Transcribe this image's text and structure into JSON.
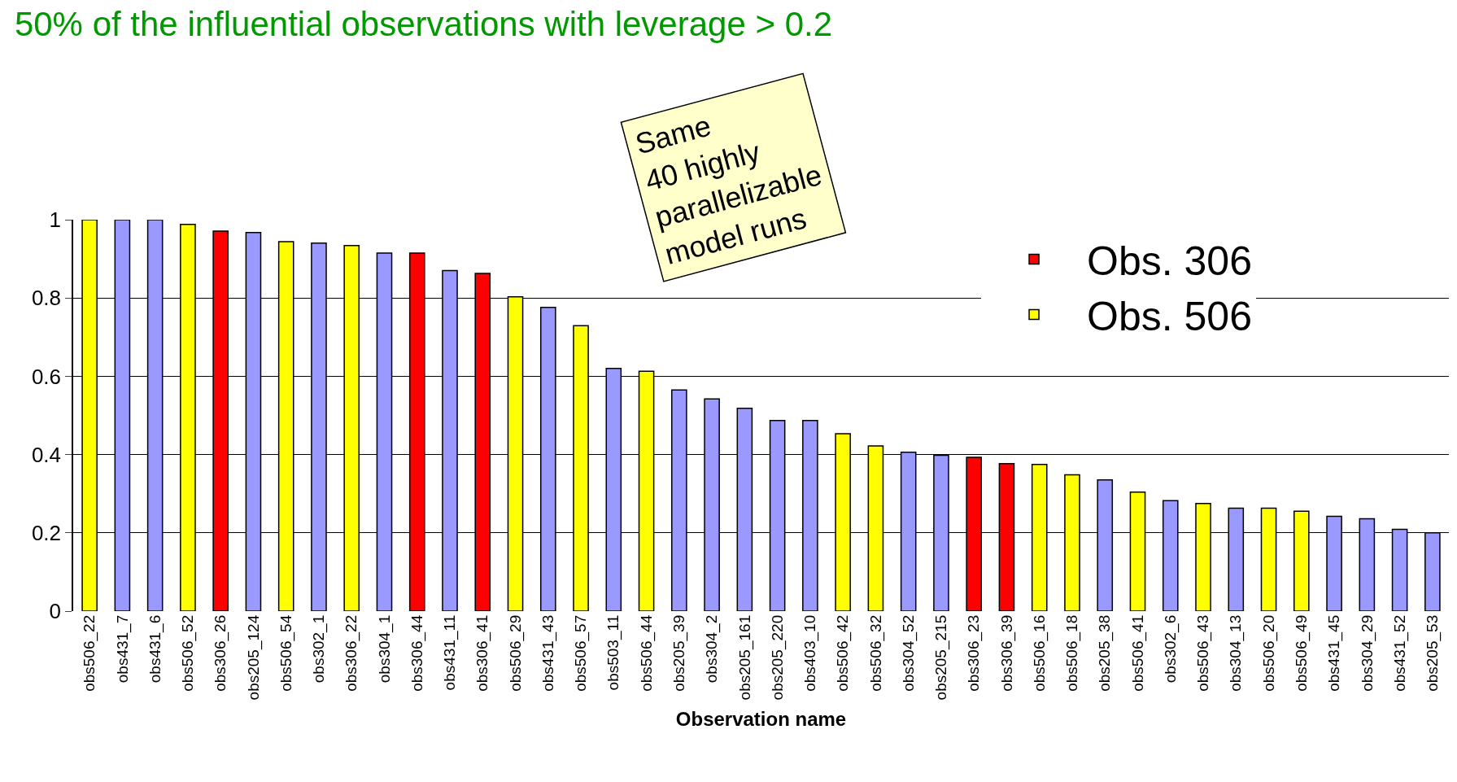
{
  "chart_data": {
    "type": "bar",
    "title": "50% of the influential observations with leverage > 0.2",
    "xlabel": "Observation name",
    "categories": [
      "obs506_22",
      "obs431_7",
      "obs431_6",
      "obs506_52",
      "obs306_26",
      "obs205_124",
      "obs506_54",
      "obs302_1",
      "obs306_22",
      "obs304_1",
      "obs306_44",
      "obs431_11",
      "obs306_41",
      "obs506_29",
      "obs431_43",
      "obs506_57",
      "obs503_11",
      "obs506_44",
      "obs205_39",
      "obs304_2",
      "obs205_161",
      "obs205_220",
      "obs403_10",
      "obs506_42",
      "obs506_32",
      "obs304_52",
      "obs205_215",
      "obs306_23",
      "obs306_39",
      "obs506_16",
      "obs506_18",
      "obs205_38",
      "obs506_41",
      "obs302_6",
      "obs506_43",
      "obs304_13",
      "obs506_20",
      "obs506_49",
      "obs431_45",
      "obs304_29",
      "obs431_52",
      "obs205_53"
    ],
    "series": [
      {
        "color": "#9999ff",
        "values": [
          null,
          1.0,
          1.0,
          null,
          null,
          0.967,
          null,
          0.94,
          null,
          0.915,
          null,
          0.87,
          null,
          null,
          0.776,
          null,
          0.62,
          null,
          0.565,
          0.542,
          0.518,
          0.487,
          0.487,
          null,
          null,
          0.406,
          0.398,
          null,
          null,
          null,
          null,
          0.335,
          null,
          0.282,
          null,
          0.263,
          null,
          null,
          0.242,
          0.236,
          0.209,
          0.2
        ]
      },
      {
        "name": "Obs. 306",
        "color": "#ff0000",
        "values": [
          null,
          null,
          null,
          null,
          0.971,
          null,
          null,
          null,
          null,
          null,
          0.915,
          null,
          0.863,
          null,
          null,
          null,
          null,
          null,
          null,
          null,
          null,
          null,
          null,
          null,
          null,
          null,
          null,
          0.393,
          0.377,
          null,
          null,
          null,
          null,
          null,
          null,
          null,
          null,
          null,
          null,
          null,
          null,
          null
        ]
      },
      {
        "name": "Obs. 506",
        "color": "#ffff00",
        "values": [
          1.0,
          null,
          null,
          0.988,
          null,
          null,
          0.944,
          null,
          0.934,
          null,
          null,
          null,
          null,
          0.803,
          null,
          0.729,
          null,
          0.613,
          null,
          null,
          null,
          null,
          null,
          0.453,
          0.422,
          null,
          null,
          null,
          null,
          0.375,
          0.348,
          null,
          0.304,
          null,
          0.275,
          null,
          0.263,
          0.255,
          null,
          null,
          null,
          null
        ]
      }
    ],
    "ylim": [
      0,
      1
    ],
    "yticks": [
      0,
      0.2,
      0.4,
      0.6,
      0.8,
      1
    ],
    "grid": "y",
    "legend": "top right",
    "annotations": [
      "Same\n40 highly\nparallelizable\nmodel runs"
    ]
  }
}
